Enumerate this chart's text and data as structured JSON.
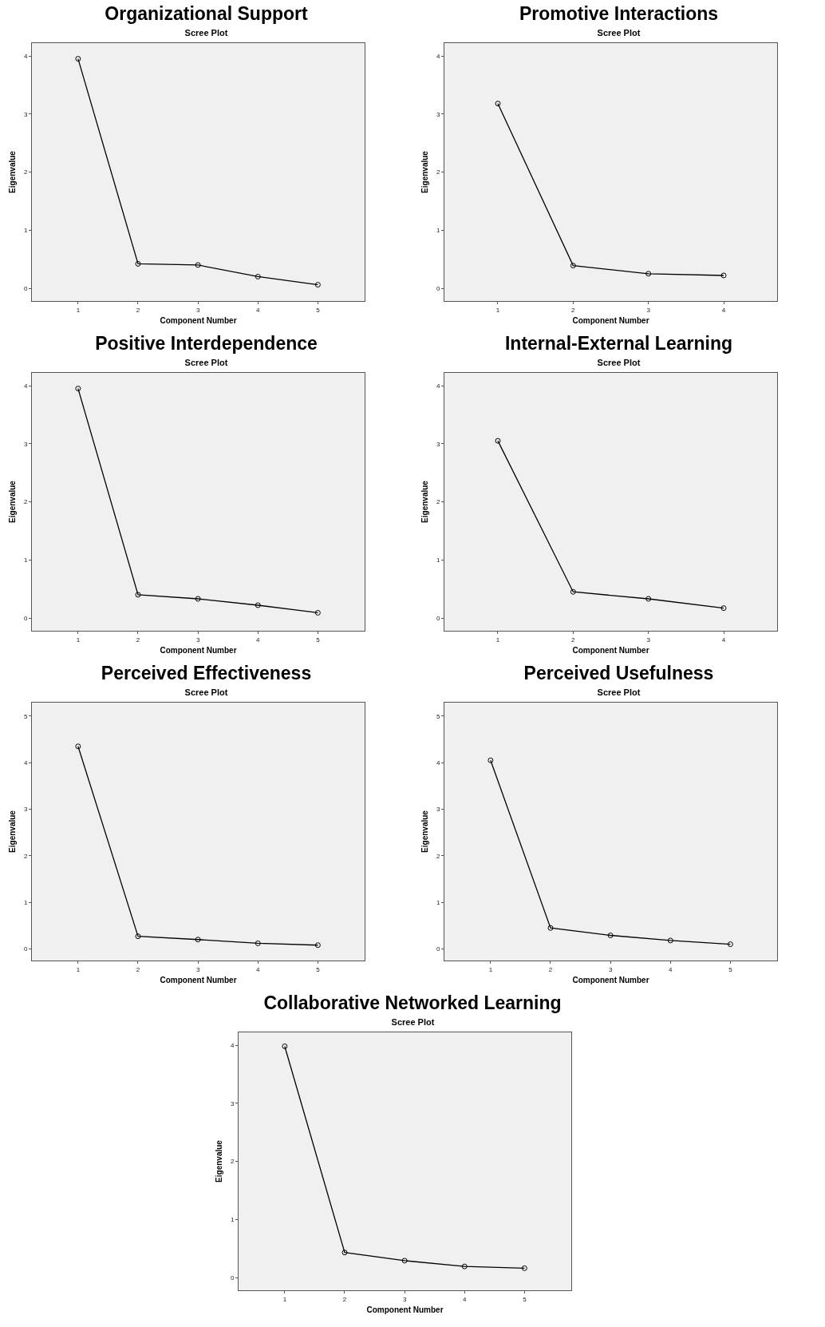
{
  "chart_data": [
    {
      "type": "line",
      "title": "Organizational Support",
      "subtitle": "Scree Plot",
      "xlabel": "Component Number",
      "ylabel": "Eigenvalue",
      "x": [
        1,
        2,
        3,
        4,
        5
      ],
      "values": [
        3.95,
        0.42,
        0.4,
        0.2,
        0.06
      ],
      "color": "#000000",
      "marker": "circle",
      "xlim": [
        0.23,
        5.78
      ],
      "xticks": [
        1,
        2,
        3,
        4,
        5
      ],
      "ylim": [
        -0.22,
        4.22
      ],
      "yticks": [
        0,
        1,
        2,
        3,
        4
      ]
    },
    {
      "type": "line",
      "title": "Promotive Interactions",
      "subtitle": "Scree Plot",
      "xlabel": "Component Number",
      "ylabel": "Eigenvalue",
      "x": [
        1,
        2,
        3,
        4
      ],
      "values": [
        3.18,
        0.39,
        0.25,
        0.22
      ],
      "color": "#000000",
      "marker": "circle",
      "xlim": [
        0.29,
        4.71
      ],
      "xticks": [
        1,
        2,
        3,
        4
      ],
      "ylim": [
        -0.22,
        4.22
      ],
      "yticks": [
        0,
        1,
        2,
        3,
        4
      ]
    },
    {
      "type": "line",
      "title": "Positive Interdependence",
      "subtitle": "Scree Plot",
      "xlabel": "Component Number",
      "ylabel": "Eigenvalue",
      "x": [
        1,
        2,
        3,
        4,
        5
      ],
      "values": [
        3.95,
        0.4,
        0.33,
        0.22,
        0.09
      ],
      "color": "#000000",
      "marker": "circle",
      "xlim": [
        0.23,
        5.78
      ],
      "xticks": [
        1,
        2,
        3,
        4,
        5
      ],
      "ylim": [
        -0.22,
        4.22
      ],
      "yticks": [
        0,
        1,
        2,
        3,
        4
      ]
    },
    {
      "type": "line",
      "title": "Internal-External Learning",
      "subtitle": "Scree Plot",
      "xlabel": "Component Number",
      "ylabel": "Eigenvalue",
      "x": [
        1,
        2,
        3,
        4
      ],
      "values": [
        3.05,
        0.45,
        0.33,
        0.17
      ],
      "color": "#000000",
      "marker": "circle",
      "xlim": [
        0.29,
        4.71
      ],
      "xticks": [
        1,
        2,
        3,
        4
      ],
      "ylim": [
        -0.22,
        4.22
      ],
      "yticks": [
        0,
        1,
        2,
        3,
        4
      ]
    },
    {
      "type": "line",
      "title": "Perceived Effectiveness",
      "subtitle": "Scree Plot",
      "xlabel": "Component Number",
      "ylabel": "Eigenvalue",
      "x": [
        1,
        2,
        3,
        4,
        5
      ],
      "values": [
        4.35,
        0.27,
        0.2,
        0.12,
        0.08
      ],
      "color": "#000000",
      "marker": "circle",
      "xlim": [
        0.23,
        5.78
      ],
      "xticks": [
        1,
        2,
        3,
        4,
        5
      ],
      "ylim": [
        -0.25,
        5.29
      ],
      "yticks": [
        0,
        1,
        2,
        3,
        4,
        5
      ]
    },
    {
      "type": "line",
      "title": "Perceived Usefulness",
      "subtitle": "Scree Plot",
      "xlabel": "Component Number",
      "ylabel": "Eigenvalue",
      "x": [
        1,
        2,
        3,
        4,
        5
      ],
      "values": [
        4.05,
        0.45,
        0.29,
        0.18,
        0.1
      ],
      "color": "#000000",
      "marker": "circle",
      "xlim": [
        0.23,
        5.78
      ],
      "xticks": [
        1,
        2,
        3,
        4,
        5
      ],
      "ylim": [
        -0.25,
        5.29
      ],
      "yticks": [
        0,
        1,
        2,
        3,
        4,
        5
      ]
    },
    {
      "type": "line",
      "title": "Collaborative Networked Learning",
      "subtitle": "Scree Plot",
      "xlabel": "Component Number",
      "ylabel": "Eigenvalue",
      "x": [
        1,
        2,
        3,
        4,
        5
      ],
      "values": [
        3.98,
        0.43,
        0.29,
        0.19,
        0.16
      ],
      "color": "#000000",
      "marker": "circle",
      "xlim": [
        0.23,
        5.78
      ],
      "xticks": [
        1,
        2,
        3,
        4,
        5
      ],
      "ylim": [
        -0.22,
        4.22
      ],
      "yticks": [
        0,
        1,
        2,
        3,
        4
      ]
    }
  ]
}
